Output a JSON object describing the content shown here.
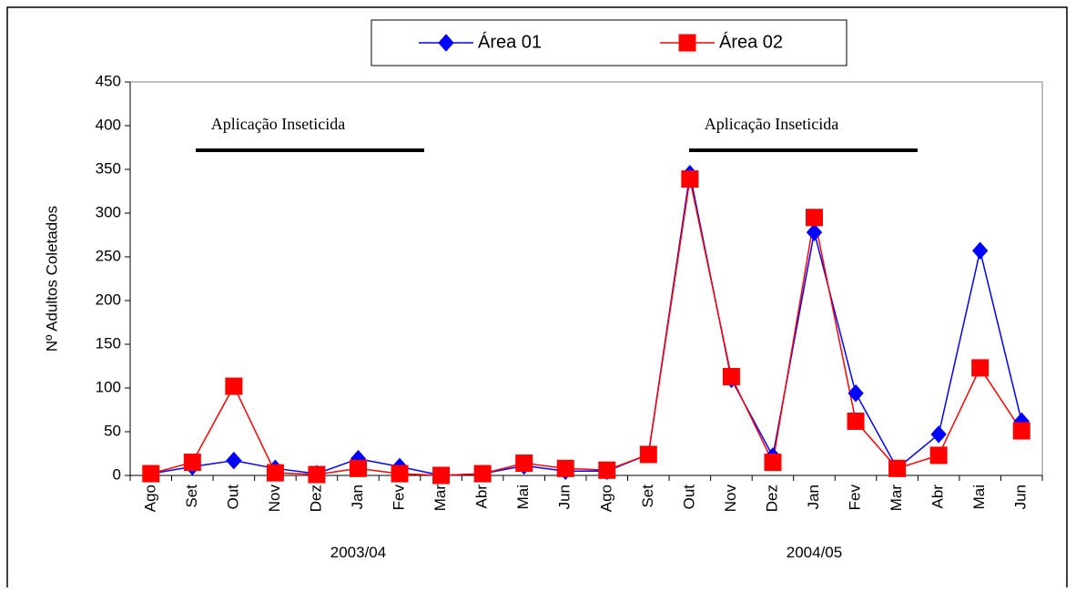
{
  "chart_data": {
    "type": "line",
    "y_label": "Nº Adultos Coletados",
    "categories": [
      "Ago",
      "Set",
      "Out",
      "Nov",
      "Dez",
      "Jan",
      "Fev",
      "Mar",
      "Abr",
      "Mai",
      "Jun",
      "Ago",
      "Set",
      "Out",
      "Nov",
      "Dez",
      "Jan",
      "Fev",
      "Mar",
      "Abr",
      "Mai",
      "Jun"
    ],
    "groups": [
      "2003/04",
      "2004/05"
    ],
    "annotations": [
      "Aplicação Inseticida",
      "Aplicação Inseticida"
    ],
    "series": [
      {
        "name": "Área 01",
        "color": "#0000ff",
        "marker": "diamond",
        "values": [
          2,
          10,
          17,
          8,
          2,
          19,
          10,
          0,
          2,
          11,
          5,
          5,
          24,
          345,
          110,
          22,
          278,
          94,
          8,
          47,
          257,
          62
        ]
      },
      {
        "name": "Área 02",
        "color": "#ff0000",
        "marker": "square",
        "values": [
          2,
          15,
          102,
          3,
          1,
          8,
          2,
          0,
          2,
          14,
          8,
          6,
          24,
          339,
          113,
          15,
          295,
          62,
          8,
          23,
          123,
          51
        ]
      }
    ],
    "ylim": [
      0,
      450
    ],
    "yticks": [
      0,
      50,
      100,
      150,
      200,
      250,
      300,
      350,
      400,
      450
    ],
    "legend": "top"
  }
}
